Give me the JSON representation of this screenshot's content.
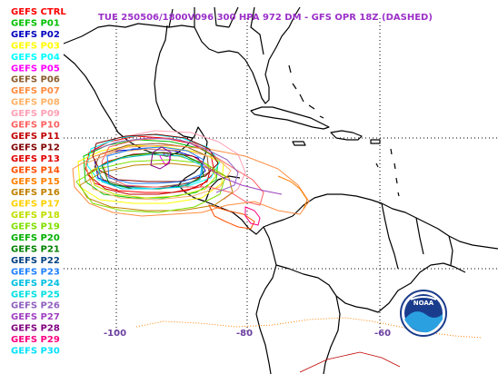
{
  "title": "TUE 250506/1800V096  300 HPA 972 DM - GFS OPR 18Z (DASHED)",
  "title_color": "#9b30c8",
  "members": [
    {
      "label": "GEFS CTRL",
      "color": "#ff0000"
    },
    {
      "label": "GEFS P01",
      "color": "#00c000"
    },
    {
      "label": "GEFS P02",
      "color": "#0000c0"
    },
    {
      "label": "GEFS P03",
      "color": "#ffff00"
    },
    {
      "label": "GEFS P04",
      "color": "#00ffff"
    },
    {
      "label": "GEFS P05",
      "color": "#ff00ff"
    },
    {
      "label": "GEFS P06",
      "color": "#8b5a2b"
    },
    {
      "label": "GEFS P07",
      "color": "#ff8c40"
    },
    {
      "label": "GEFS P08",
      "color": "#ffb266"
    },
    {
      "label": "GEFS P09",
      "color": "#ffa0b4"
    },
    {
      "label": "GEFS P10",
      "color": "#ff6060"
    },
    {
      "label": "GEFS P11",
      "color": "#c00000"
    },
    {
      "label": "GEFS P12",
      "color": "#800000"
    },
    {
      "label": "GEFS P13",
      "color": "#e00000"
    },
    {
      "label": "GEFS P14",
      "color": "#ff5000"
    },
    {
      "label": "GEFS P15",
      "color": "#ff8000"
    },
    {
      "label": "GEFS P16",
      "color": "#c08000"
    },
    {
      "label": "GEFS P17",
      "color": "#ffd000"
    },
    {
      "label": "GEFS P18",
      "color": "#c0e000"
    },
    {
      "label": "GEFS P19",
      "color": "#80e000"
    },
    {
      "label": "GEFS P20",
      "color": "#00b000"
    },
    {
      "label": "GEFS P21",
      "color": "#008000"
    },
    {
      "label": "GEFS P22",
      "color": "#004080"
    },
    {
      "label": "GEFS P23",
      "color": "#2080ff"
    },
    {
      "label": "GEFS P24",
      "color": "#00c0e0"
    },
    {
      "label": "GEFS P25",
      "color": "#00e0e0"
    },
    {
      "label": "GEFS P26",
      "color": "#9060c0"
    },
    {
      "label": "GEFS P27",
      "color": "#a040c0"
    },
    {
      "label": "GEFS P28",
      "color": "#800080"
    },
    {
      "label": "GEFS P29",
      "color": "#ff0080"
    },
    {
      "label": "GEFS P30",
      "color": "#00e0ff"
    }
  ],
  "lon_labels": [
    "-100",
    "-80",
    "-60"
  ],
  "logo_text": "NOAA",
  "colors": {
    "coast": "#000000",
    "grid": "#000000",
    "axis_label": "#6b3fa0",
    "logo_blue": "#1a3c8c"
  }
}
